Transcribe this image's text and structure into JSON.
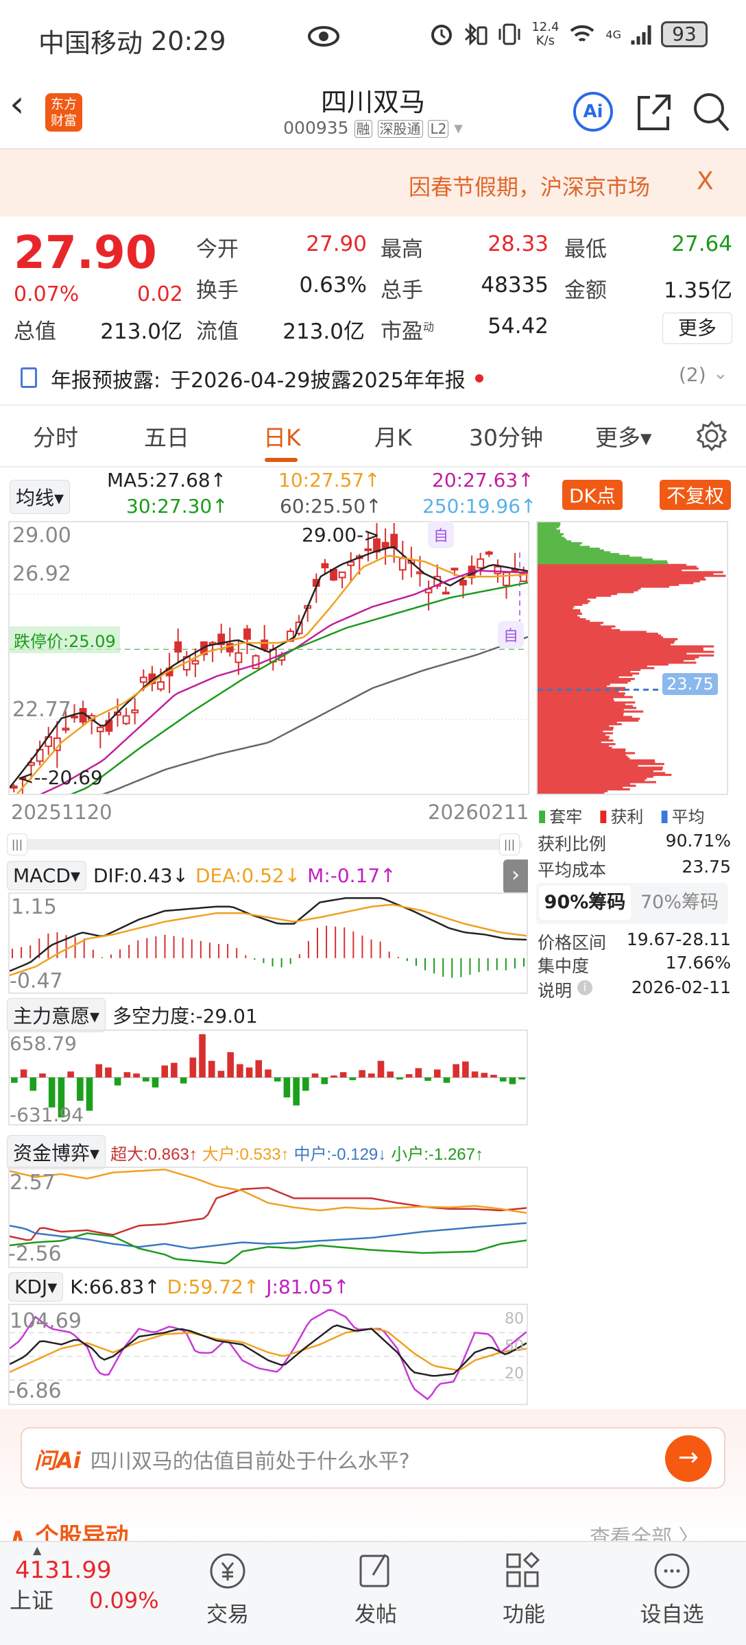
{
  "status": {
    "carrier": "中国移动",
    "time": "20:29",
    "net_speed": "12.4",
    "net_unit": "K/s",
    "signal": "4G",
    "battery": "93"
  },
  "header": {
    "title": "四川双马",
    "code": "000935",
    "tags": [
      "融",
      "深股通",
      "L2"
    ],
    "logo": "东方财富",
    "ai": "Ai",
    "icons": [
      "back-icon",
      "share-icon",
      "search-icon"
    ]
  },
  "banner": {
    "text": "因春节假期，沪深京市场",
    "close": "X"
  },
  "quote": {
    "price": "27.90",
    "pct": "0.07%",
    "chg": "0.02",
    "fields": [
      {
        "label": "今开",
        "value": "27.90",
        "color": "red"
      },
      {
        "label": "最高",
        "value": "28.33",
        "color": "red"
      },
      {
        "label": "最低",
        "value": "27.64",
        "color": "green"
      },
      {
        "label": "换手",
        "value": "0.63%"
      },
      {
        "label": "总手",
        "value": "48335"
      },
      {
        "label": "金额",
        "value": "1.35亿"
      },
      {
        "label": "总值",
        "value": "213.0亿"
      },
      {
        "label": "流值",
        "value": "213.0亿"
      },
      {
        "label": "市盈",
        "value": "54.42",
        "sup": "动"
      }
    ],
    "more": "更多"
  },
  "report": {
    "label": "年报预披露:",
    "text": "于2026-04-29披露2025年年报",
    "count": "(2)"
  },
  "tabs": {
    "items": [
      "分时",
      "五日",
      "日K",
      "月K",
      "30分钟",
      "更多▾"
    ],
    "active": 2
  },
  "kline": {
    "selector": "均线",
    "ma": [
      {
        "t": "MA5:27.68↑",
        "c": "#222"
      },
      {
        "t": "10:27.57↑",
        "c": "#f0a020"
      },
      {
        "t": "20:27.63↑",
        "c": "#c0209a"
      },
      {
        "t": "30:27.30↑",
        "c": "#1c9a1c"
      },
      {
        "t": "60:25.50↑",
        "c": "#555"
      },
      {
        "t": "250:19.96↑",
        "c": "#5ab0e8"
      }
    ],
    "dk": "DK点",
    "fq": "不复权",
    "y_labels": [
      "29.00",
      "26.92",
      "22.77",
      "20.69"
    ],
    "high_mark": "29.00->",
    "low_mark": "<--20.69",
    "trigger": "跌停价:25.09",
    "self_mark": "自",
    "date_start": "20251120",
    "date_end": "20260211",
    "ylim": [
      20.3,
      29.3
    ],
    "series": {
      "ma5": [
        [
          0,
          20.5
        ],
        [
          0.05,
          21.6
        ],
        [
          0.1,
          22.8
        ],
        [
          0.14,
          23.0
        ],
        [
          0.18,
          22.5
        ],
        [
          0.22,
          23.2
        ],
        [
          0.27,
          24.0
        ],
        [
          0.32,
          24.6
        ],
        [
          0.38,
          25.2
        ],
        [
          0.44,
          25.4
        ],
        [
          0.5,
          25.0
        ],
        [
          0.55,
          25.5
        ],
        [
          0.6,
          27.5
        ],
        [
          0.64,
          27.9
        ],
        [
          0.7,
          28.3
        ],
        [
          0.74,
          28.5
        ],
        [
          0.8,
          27.6
        ],
        [
          0.85,
          27.2
        ],
        [
          0.88,
          27.5
        ],
        [
          0.93,
          27.9
        ],
        [
          1,
          27.68
        ]
      ],
      "ma10": [
        [
          0,
          20.0
        ],
        [
          0.05,
          21.0
        ],
        [
          0.1,
          22.0
        ],
        [
          0.16,
          22.8
        ],
        [
          0.22,
          23.3
        ],
        [
          0.3,
          24.3
        ],
        [
          0.38,
          25.0
        ],
        [
          0.45,
          25.3
        ],
        [
          0.52,
          25.3
        ],
        [
          0.57,
          25.5
        ],
        [
          0.62,
          26.5
        ],
        [
          0.68,
          27.8
        ],
        [
          0.73,
          28.2
        ],
        [
          0.8,
          28.0
        ],
        [
          0.87,
          27.5
        ],
        [
          0.93,
          27.5
        ],
        [
          1,
          27.57
        ]
      ],
      "ma20": [
        [
          0,
          19.8
        ],
        [
          0.1,
          20.6
        ],
        [
          0.18,
          21.4
        ],
        [
          0.25,
          22.5
        ],
        [
          0.32,
          23.6
        ],
        [
          0.4,
          24.2
        ],
        [
          0.48,
          24.6
        ],
        [
          0.55,
          25.1
        ],
        [
          0.62,
          25.9
        ],
        [
          0.7,
          26.5
        ],
        [
          0.78,
          26.9
        ],
        [
          0.85,
          27.4
        ],
        [
          0.9,
          27.7
        ],
        [
          1,
          27.63
        ]
      ],
      "ma30": [
        [
          0.05,
          19.8
        ],
        [
          0.15,
          20.5
        ],
        [
          0.25,
          21.8
        ],
        [
          0.35,
          23.0
        ],
        [
          0.45,
          24.1
        ],
        [
          0.55,
          25.1
        ],
        [
          0.65,
          25.8
        ],
        [
          0.75,
          26.3
        ],
        [
          0.85,
          26.8
        ],
        [
          1,
          27.3
        ]
      ],
      "ma60": [
        [
          0.1,
          19.8
        ],
        [
          0.2,
          20.4
        ],
        [
          0.3,
          21.1
        ],
        [
          0.4,
          21.6
        ],
        [
          0.5,
          22.0
        ],
        [
          0.6,
          22.9
        ],
        [
          0.7,
          23.8
        ],
        [
          0.8,
          24.4
        ],
        [
          0.9,
          24.9
        ],
        [
          1,
          25.5
        ]
      ]
    }
  },
  "chips": {
    "legend": [
      "套牢",
      "获利",
      "平均"
    ],
    "avg_cost_label": "23.75",
    "avg_cost": 23.75,
    "rows": [
      {
        "label": "获利比例",
        "value": "90.71%"
      },
      {
        "label": "平均成本",
        "value": "23.75"
      }
    ],
    "tabs": [
      "90%筹码",
      "70%筹码"
    ],
    "rows2": [
      {
        "label": "价格区间",
        "value": "19.67-28.11"
      },
      {
        "label": "集中度",
        "value": "17.66%"
      },
      {
        "label": "说明",
        "value": "2026-02-11"
      }
    ]
  },
  "macd": {
    "selector": "MACD",
    "dif": "DIF:0.43↓",
    "dea": "DEA:0.52↓",
    "m": "M:-0.17↑",
    "y_labels": [
      "1.15",
      "-0.47"
    ],
    "ylim": [
      -0.8,
      1.5
    ],
    "dif_s": [
      [
        0,
        -0.3
      ],
      [
        0.04,
        -0.1
      ],
      [
        0.08,
        0.3
      ],
      [
        0.14,
        0.6
      ],
      [
        0.18,
        0.5
      ],
      [
        0.25,
        0.9
      ],
      [
        0.3,
        1.1
      ],
      [
        0.4,
        1.2
      ],
      [
        0.43,
        1.2
      ],
      [
        0.47,
        1.0
      ],
      [
        0.52,
        0.8
      ],
      [
        0.55,
        0.8
      ],
      [
        0.6,
        1.3
      ],
      [
        0.65,
        1.4
      ],
      [
        0.72,
        1.4
      ],
      [
        0.78,
        1.1
      ],
      [
        0.85,
        0.7
      ],
      [
        0.88,
        0.6
      ],
      [
        0.92,
        0.55
      ],
      [
        0.96,
        0.45
      ],
      [
        1,
        0.43
      ]
    ],
    "dea_s": [
      [
        0,
        -0.4
      ],
      [
        0.05,
        -0.2
      ],
      [
        0.1,
        0.15
      ],
      [
        0.15,
        0.45
      ],
      [
        0.2,
        0.55
      ],
      [
        0.3,
        0.85
      ],
      [
        0.4,
        1.05
      ],
      [
        0.45,
        1.05
      ],
      [
        0.5,
        0.95
      ],
      [
        0.55,
        0.85
      ],
      [
        0.6,
        0.95
      ],
      [
        0.7,
        1.2
      ],
      [
        0.74,
        1.25
      ],
      [
        0.8,
        1.1
      ],
      [
        0.88,
        0.8
      ],
      [
        0.95,
        0.6
      ],
      [
        1,
        0.52
      ]
    ]
  },
  "zlyy": {
    "selector": "主力意愿",
    "value": "多空力度:-29.01",
    "y_labels": [
      "658.79",
      "-631.94"
    ],
    "ylim": [
      -700,
      700
    ],
    "bars": [
      -80,
      120,
      -200,
      60,
      -450,
      -600,
      90,
      -350,
      -500,
      200,
      150,
      -120,
      80,
      60,
      -60,
      -150,
      180,
      220,
      -90,
      300,
      650,
      250,
      100,
      380,
      200,
      150,
      260,
      120,
      -60,
      -300,
      -420,
      -200,
      60,
      -100,
      30,
      80,
      -40,
      110,
      60,
      250,
      90,
      -30,
      50,
      140,
      -50,
      120,
      -80,
      200,
      240,
      90,
      70,
      40,
      -60,
      -100,
      -29
    ]
  },
  "zjby": {
    "selector": "资金博弈",
    "items": [
      {
        "t": "超大:0.863↑",
        "c": "#c83232"
      },
      {
        "t": "大户:0.533↑",
        "c": "#f0a020"
      },
      {
        "t": "中户:-0.129↓",
        "c": "#3a78c0"
      },
      {
        "t": "小户:-1.267↑",
        "c": "#1c9a1c"
      }
    ],
    "y_labels": [
      "2.57",
      "-2.56"
    ],
    "ylim": [
      -3.0,
      3.5
    ],
    "s": [
      [
        [
          0,
          -1.0
        ],
        [
          0.04,
          -1.3
        ],
        [
          0.06,
          -0.4
        ],
        [
          0.1,
          -0.7
        ],
        [
          0.15,
          -0.6
        ],
        [
          0.18,
          -0.8
        ],
        [
          0.2,
          -0.9
        ],
        [
          0.25,
          -0.3
        ],
        [
          0.3,
          -0.2
        ],
        [
          0.38,
          0.2
        ],
        [
          0.4,
          1.5
        ],
        [
          0.45,
          2.1
        ],
        [
          0.5,
          2.2
        ],
        [
          0.55,
          1.5
        ],
        [
          0.6,
          1.5
        ],
        [
          0.7,
          1.5
        ],
        [
          0.75,
          1.2
        ],
        [
          0.8,
          0.95
        ],
        [
          0.85,
          0.8
        ],
        [
          0.9,
          0.8
        ],
        [
          0.95,
          0.7
        ],
        [
          1,
          0.863
        ]
      ],
      [
        [
          0,
          3.3
        ],
        [
          0.05,
          2.9
        ],
        [
          0.1,
          3.1
        ],
        [
          0.15,
          2.8
        ],
        [
          0.2,
          3.2
        ],
        [
          0.3,
          3.4
        ],
        [
          0.36,
          2.8
        ],
        [
          0.4,
          2.3
        ],
        [
          0.45,
          2.0
        ],
        [
          0.5,
          1.2
        ],
        [
          0.55,
          0.9
        ],
        [
          0.6,
          0.7
        ],
        [
          0.65,
          0.9
        ],
        [
          0.7,
          0.8
        ],
        [
          0.8,
          0.95
        ],
        [
          0.85,
          0.9
        ],
        [
          0.9,
          1.0
        ],
        [
          0.95,
          0.8
        ],
        [
          1,
          0.533
        ]
      ],
      [
        [
          0,
          -0.3
        ],
        [
          0.03,
          -0.5
        ],
        [
          0.05,
          -0.8
        ],
        [
          0.1,
          -1.0
        ],
        [
          0.15,
          -1.2
        ],
        [
          0.2,
          -1.5
        ],
        [
          0.25,
          -1.7
        ],
        [
          0.3,
          -1.5
        ],
        [
          0.35,
          -1.8
        ],
        [
          0.4,
          -1.6
        ],
        [
          0.45,
          -1.4
        ],
        [
          0.5,
          -1.5
        ],
        [
          0.6,
          -1.3
        ],
        [
          0.7,
          -1.1
        ],
        [
          0.8,
          -0.7
        ],
        [
          0.9,
          -0.4
        ],
        [
          1,
          -0.129
        ]
      ],
      [
        [
          0,
          -1.6
        ],
        [
          0.05,
          -1.4
        ],
        [
          0.1,
          -1.3
        ],
        [
          0.15,
          -0.8
        ],
        [
          0.2,
          -1.0
        ],
        [
          0.25,
          -1.8
        ],
        [
          0.3,
          -2.2
        ],
        [
          0.32,
          -2.5
        ],
        [
          0.42,
          -2.8
        ],
        [
          0.45,
          -2.0
        ],
        [
          0.5,
          -1.7
        ],
        [
          0.55,
          -1.8
        ],
        [
          0.6,
          -1.6
        ],
        [
          0.7,
          -1.9
        ],
        [
          0.8,
          -2.1
        ],
        [
          0.9,
          -2.0
        ],
        [
          0.95,
          -1.5
        ],
        [
          1,
          -1.267
        ]
      ]
    ]
  },
  "kdj": {
    "selector": "KDJ",
    "k": "K:66.83↑",
    "d": "D:59.72↑",
    "j": "J:81.05↑",
    "y_labels": [
      "104.69",
      "-6.86"
    ],
    "grid": [
      "80",
      "50",
      "20"
    ],
    "ylim": [
      -10,
      115
    ],
    "k_s": [
      [
        0,
        40
      ],
      [
        0.03,
        50
      ],
      [
        0.06,
        70
      ],
      [
        0.1,
        65
      ],
      [
        0.13,
        72
      ],
      [
        0.16,
        60
      ],
      [
        0.18,
        45
      ],
      [
        0.2,
        50
      ],
      [
        0.25,
        75
      ],
      [
        0.3,
        80
      ],
      [
        0.33,
        85
      ],
      [
        0.35,
        82
      ],
      [
        0.4,
        70
      ],
      [
        0.45,
        65
      ],
      [
        0.5,
        45
      ],
      [
        0.53,
        38
      ],
      [
        0.57,
        60
      ],
      [
        0.6,
        75
      ],
      [
        0.63,
        90
      ],
      [
        0.67,
        82
      ],
      [
        0.7,
        85
      ],
      [
        0.75,
        55
      ],
      [
        0.78,
        30
      ],
      [
        0.82,
        25
      ],
      [
        0.86,
        28
      ],
      [
        0.9,
        55
      ],
      [
        0.93,
        62
      ],
      [
        0.96,
        52
      ],
      [
        1,
        66.83
      ]
    ],
    "d_s": [
      [
        0,
        30
      ],
      [
        0.05,
        45
      ],
      [
        0.1,
        60
      ],
      [
        0.15,
        67
      ],
      [
        0.2,
        55
      ],
      [
        0.25,
        68
      ],
      [
        0.3,
        78
      ],
      [
        0.35,
        80
      ],
      [
        0.4,
        72
      ],
      [
        0.45,
        68
      ],
      [
        0.5,
        55
      ],
      [
        0.53,
        50
      ],
      [
        0.6,
        65
      ],
      [
        0.65,
        80
      ],
      [
        0.7,
        85
      ],
      [
        0.73,
        82
      ],
      [
        0.78,
        55
      ],
      [
        0.82,
        38
      ],
      [
        0.87,
        32
      ],
      [
        0.9,
        45
      ],
      [
        0.95,
        55
      ],
      [
        1,
        59.72
      ]
    ],
    "j_s": [
      [
        0,
        60
      ],
      [
        0.02,
        70
      ],
      [
        0.05,
        100
      ],
      [
        0.08,
        85
      ],
      [
        0.12,
        80
      ],
      [
        0.15,
        62
      ],
      [
        0.17,
        30
      ],
      [
        0.19,
        25
      ],
      [
        0.22,
        60
      ],
      [
        0.25,
        85
      ],
      [
        0.28,
        80
      ],
      [
        0.31,
        88
      ],
      [
        0.34,
        82
      ],
      [
        0.36,
        55
      ],
      [
        0.39,
        54
      ],
      [
        0.42,
        72
      ],
      [
        0.45,
        45
      ],
      [
        0.48,
        35
      ],
      [
        0.52,
        30
      ],
      [
        0.55,
        60
      ],
      [
        0.58,
        95
      ],
      [
        0.62,
        110
      ],
      [
        0.65,
        100
      ],
      [
        0.67,
        84
      ],
      [
        0.72,
        85
      ],
      [
        0.75,
        60
      ],
      [
        0.78,
        10
      ],
      [
        0.81,
        -5
      ],
      [
        0.83,
        15
      ],
      [
        0.86,
        18
      ],
      [
        0.9,
        80
      ],
      [
        0.93,
        78
      ],
      [
        0.95,
        55
      ],
      [
        1,
        81.05
      ]
    ]
  },
  "ai": {
    "logo": "问Ai",
    "placeholder": "四川双马的估值目前处于什么水平?"
  },
  "movement": {
    "title": "个股异动",
    "more": "查看全部 〉"
  },
  "bottom": {
    "index_value": "4131.99",
    "index_name": "上证",
    "index_pct": "0.09%",
    "items": [
      "交易",
      "发帖",
      "功能",
      "设自选"
    ]
  },
  "colors": {
    "up": "#e8262a",
    "down": "#1c9a1c",
    "accent": "#f05a14"
  }
}
